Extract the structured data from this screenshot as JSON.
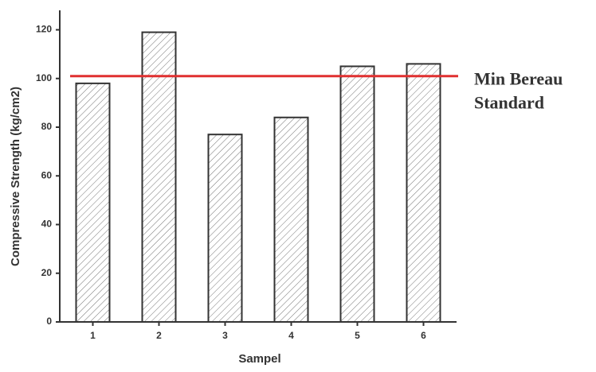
{
  "chart_data": {
    "type": "bar",
    "x_label": "Sampel",
    "y_label": "Compressive Strength (kg/cm2)",
    "categories": [
      "1",
      "2",
      "3",
      "4",
      "5",
      "6"
    ],
    "values": [
      98,
      119,
      77,
      84,
      105,
      106
    ],
    "color": "#333333",
    "ylim": [
      0,
      128
    ],
    "yticks": [
      0,
      20,
      40,
      60,
      80,
      100,
      120
    ],
    "reference_line": {
      "value": 101,
      "color": "#e03030",
      "label_lines": [
        "Min Bereau",
        "Standard"
      ]
    }
  }
}
